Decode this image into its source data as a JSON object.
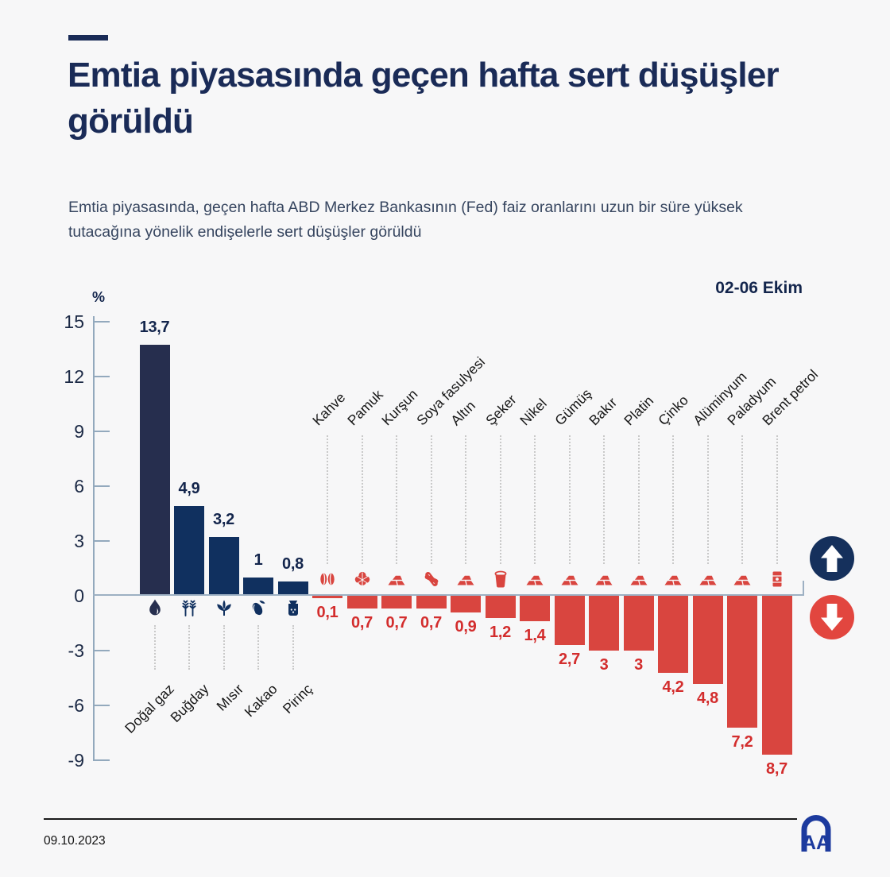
{
  "header": {
    "title": "Emtia piyasasında geçen hafta sert düşüşler görüldü",
    "subtitle": "Emtia piyasasında, geçen hafta ABD Merkez Bankasının (Fed) faiz oranlarını uzun bir süre yüksek tutacağına yönelik endişelerle sert düşüşler görüldü",
    "period_label": "02-06 Ekim"
  },
  "chart_data": {
    "type": "bar",
    "unit_label": "%",
    "ylim": [
      -9,
      15
    ],
    "yticks": [
      {
        "value": 15,
        "label": "15"
      },
      {
        "value": 12,
        "label": "12"
      },
      {
        "value": 9,
        "label": "9"
      },
      {
        "value": 6,
        "label": "6"
      },
      {
        "value": 3,
        "label": "3"
      },
      {
        "value": 0,
        "label": "0"
      },
      {
        "value": -3,
        "label": "-3"
      },
      {
        "value": -6,
        "label": "-6"
      },
      {
        "value": -9,
        "label": "-9"
      }
    ],
    "series": [
      {
        "name": "Yükselenler",
        "direction": "up",
        "items": [
          {
            "label": "Doğal gaz",
            "value": 13.7,
            "display": "13,7",
            "icon": "flame-icon"
          },
          {
            "label": "Buğday",
            "value": 4.9,
            "display": "4,9",
            "icon": "wheat-icon"
          },
          {
            "label": "Mısır",
            "value": 3.2,
            "display": "3,2",
            "icon": "corn-icon"
          },
          {
            "label": "Kakao",
            "value": 1,
            "display": "1",
            "icon": "cacao-icon"
          },
          {
            "label": "Pirinç",
            "value": 0.8,
            "display": "0,8",
            "icon": "rice-sack-icon"
          }
        ]
      },
      {
        "name": "Düşenler",
        "direction": "down",
        "items": [
          {
            "label": "Kahve",
            "value": -0.1,
            "display": "0,1",
            "icon": "coffee-beans-icon"
          },
          {
            "label": "Pamuk",
            "value": -0.7,
            "display": "0,7",
            "icon": "cotton-icon"
          },
          {
            "label": "Kurşun",
            "value": -0.7,
            "display": "0,7",
            "icon": "ingots-icon"
          },
          {
            "label": "Soya fasulyesi",
            "value": -0.7,
            "display": "0,7",
            "icon": "soybean-icon"
          },
          {
            "label": "Altın",
            "value": -0.9,
            "display": "0,9",
            "icon": "ingots-icon"
          },
          {
            "label": "Şeker",
            "value": -1.2,
            "display": "1,2",
            "icon": "sugar-icon"
          },
          {
            "label": "Nikel",
            "value": -1.4,
            "display": "1,4",
            "icon": "ingots-icon"
          },
          {
            "label": "Gümüş",
            "value": -2.7,
            "display": "2,7",
            "icon": "ingots-icon"
          },
          {
            "label": "Bakır",
            "value": -3,
            "display": "3",
            "icon": "ingots-icon"
          },
          {
            "label": "Platin",
            "value": -3,
            "display": "3",
            "icon": "ingots-icon"
          },
          {
            "label": "Çinko",
            "value": -4.2,
            "display": "4,2",
            "icon": "ingots-icon"
          },
          {
            "label": "Alüminyum",
            "value": -4.8,
            "display": "4,8",
            "icon": "ingots-icon"
          },
          {
            "label": "Paladyum",
            "value": -7.2,
            "display": "7,2",
            "icon": "ingots-icon"
          },
          {
            "label": "Brent petrol",
            "value": -8.7,
            "display": "8,7",
            "icon": "oil-barrel-icon"
          }
        ]
      }
    ],
    "colors": {
      "first_bar": "#262e4e",
      "positive_bar": "#10305f",
      "positive_value": "#13254c",
      "negative_bar": "#d9453f",
      "negative_value": "#d32d2d",
      "up_circle": "#15305c",
      "down_circle": "#e2463f",
      "accent_navy": "#1a2b57"
    },
    "legend": {
      "up_arrow": "yükseliş",
      "down_arrow": "düşüş"
    },
    "grid": false
  },
  "footer": {
    "date": "09.10.2023",
    "logo": "AA"
  }
}
